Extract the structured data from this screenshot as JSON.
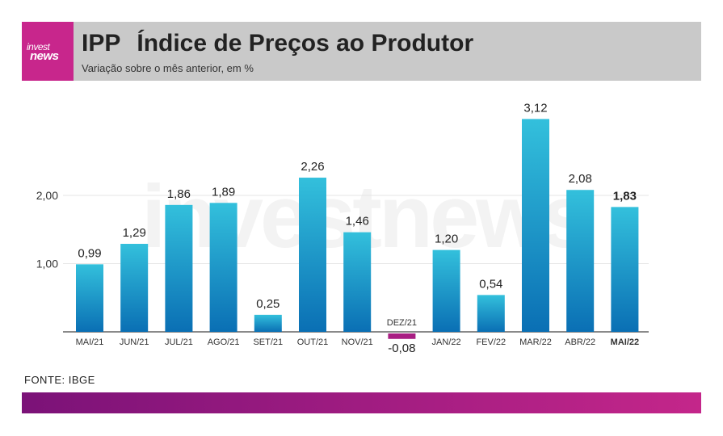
{
  "brand": {
    "logo_line1": "invest",
    "logo_line2": "news",
    "watermark": "investnews"
  },
  "header": {
    "title_code": "IPP",
    "title_text": "Índice de Preços ao Produtor",
    "subtitle": "Variação sobre o mês anterior, em %"
  },
  "source": "FONTE: IBGE",
  "colors": {
    "header_bg": "#c9c9c9",
    "accent": "#c8268c",
    "bar_top": "#33c0dc",
    "bar_bottom": "#0a6fb4",
    "negative": "#a81e82"
  },
  "chart_data": {
    "type": "bar",
    "categories": [
      "MAI/21",
      "JUN/21",
      "JUL/21",
      "AGO/21",
      "SET/21",
      "OUT/21",
      "NOV/21",
      "DEZ/21",
      "JAN/22",
      "FEV/22",
      "MAR/22",
      "ABR/22",
      "MAI/22"
    ],
    "values": [
      0.99,
      1.29,
      1.86,
      1.89,
      0.25,
      2.26,
      1.46,
      -0.08,
      1.2,
      0.54,
      3.12,
      2.08,
      1.83
    ],
    "value_labels": [
      "0,99",
      "1,29",
      "1,86",
      "1,89",
      "0,25",
      "2,26",
      "1,46",
      "-0,08",
      "1,20",
      "0,54",
      "3,12",
      "2,08",
      "1,83"
    ],
    "y_ticks": [
      1,
      2
    ],
    "y_tick_labels": [
      "1,00",
      "2,00"
    ],
    "ylim": [
      -0.1,
      3.3
    ],
    "highlight_last": true,
    "grid": true
  }
}
